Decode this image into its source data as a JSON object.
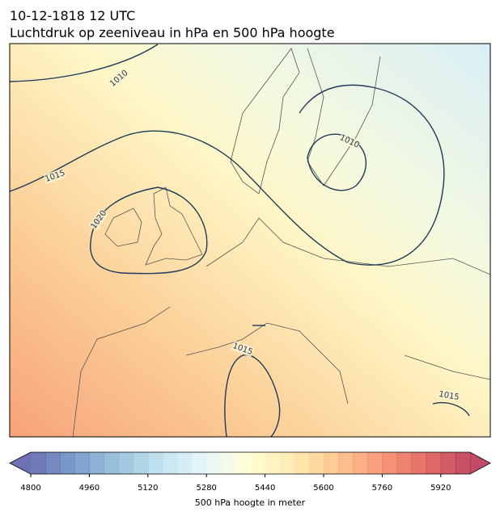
{
  "chart_data": {
    "type": "map",
    "title": "10-12-1818 12 UTC",
    "subtitle": "Luchtdruk op zeeniveau in hPa en 500 hPa hoogte",
    "isobar_labels": [
      1010,
      1015,
      1020,
      1010,
      1015,
      1015
    ],
    "colorbar": {
      "label": "500 hPa hoogte in meter",
      "lim": [
        4800,
        6000
      ],
      "step": 40,
      "ticks": [
        4800,
        4960,
        5120,
        5280,
        5440,
        5600,
        5760,
        5920
      ],
      "colormap": [
        "#313695",
        "#4575b4",
        "#74add1",
        "#abd9e9",
        "#e0f3f8",
        "#ffffbf",
        "#fee090",
        "#fdae61",
        "#f46d43",
        "#d73027",
        "#a50026"
      ]
    }
  }
}
